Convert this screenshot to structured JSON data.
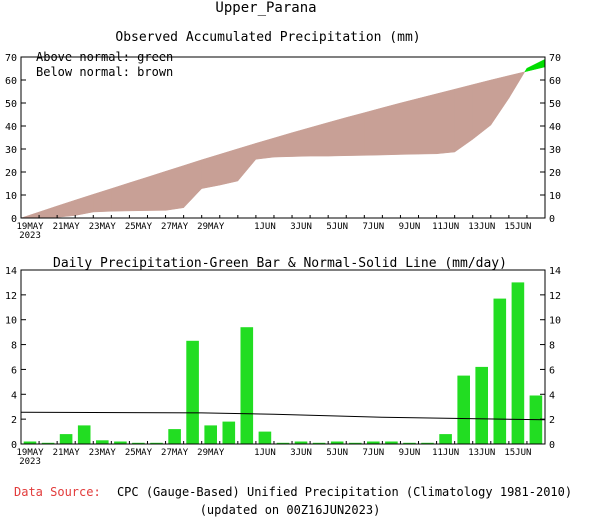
{
  "title": "Upper_Parana",
  "colors": {
    "above": "#00dd00",
    "below": "#c8a096",
    "bar": "#22dd22",
    "line": "#000000",
    "source_label": "#e23b3b"
  },
  "chart_data": [
    {
      "type": "area",
      "title": "Observed Accumulated Precipitation (mm)",
      "legend": [
        "Above normal: green",
        "Below normal: brown"
      ],
      "legend_position": "top-left",
      "x_days": [
        0,
        1,
        2,
        3,
        4,
        5,
        6,
        7,
        8,
        9,
        10,
        11,
        12,
        13,
        14,
        15,
        16,
        17,
        18,
        19,
        20,
        21,
        22,
        23,
        24,
        25,
        26,
        27,
        28,
        29
      ],
      "x_ticks": [
        {
          "day": 1,
          "label": "19MAY",
          "sub": "2023"
        },
        {
          "day": 3,
          "label": "21MAY"
        },
        {
          "day": 5,
          "label": "23MAY"
        },
        {
          "day": 7,
          "label": "25MAY"
        },
        {
          "day": 9,
          "label": "27MAY"
        },
        {
          "day": 11,
          "label": "29MAY"
        },
        {
          "day": 14,
          "label": "1JUN"
        },
        {
          "day": 16,
          "label": "3JUN"
        },
        {
          "day": 18,
          "label": "5JUN"
        },
        {
          "day": 20,
          "label": "7JUN"
        },
        {
          "day": 22,
          "label": "9JUN"
        },
        {
          "day": 24,
          "label": "11JUN"
        },
        {
          "day": 26,
          "label": "13JUN"
        },
        {
          "day": 28,
          "label": "15JUN"
        }
      ],
      "observed_accumulated": [
        0,
        0.2,
        0.3,
        1.1,
        2.6,
        2.9,
        3.1,
        3.2,
        3.3,
        4.5,
        12.8,
        14.3,
        16.1,
        25.5,
        26.5,
        26.7,
        26.9,
        26.9,
        27.1,
        27.2,
        27.4,
        27.6,
        27.8,
        27.9,
        28.7,
        34.2,
        40.4,
        52.1,
        65.1,
        69.0
      ],
      "normal_accumulated": [
        0,
        2.6,
        5.2,
        7.8,
        10.3,
        12.8,
        15.3,
        17.8,
        20.3,
        22.8,
        25.3,
        27.7,
        30.1,
        32.5,
        34.8,
        37.1,
        39.3,
        41.5,
        43.7,
        45.8,
        47.9,
        50.0,
        52.0,
        54.0,
        56.0,
        58.0,
        60.0,
        61.9,
        63.8,
        65.7
      ],
      "ylim": [
        0,
        70
      ],
      "yticks": [
        0,
        10,
        20,
        30,
        40,
        50,
        60,
        70
      ]
    },
    {
      "type": "bar",
      "title": "Daily Precipitation-Green Bar & Normal-Solid Line (mm/day)",
      "bar_days": [
        1,
        2,
        3,
        4,
        5,
        6,
        7,
        8,
        9,
        10,
        11,
        12,
        13,
        14,
        15,
        16,
        17,
        18,
        19,
        20,
        21,
        22,
        23,
        24,
        25,
        26,
        27,
        28,
        29
      ],
      "daily": [
        0.2,
        0.1,
        0.8,
        1.5,
        0.3,
        0.2,
        0.1,
        0.1,
        1.2,
        8.3,
        1.5,
        1.8,
        9.4,
        1.0,
        0.1,
        0.2,
        0.1,
        0.2,
        0.1,
        0.2,
        0.2,
        0.1,
        0.1,
        0.8,
        5.5,
        6.2,
        11.7,
        13.0,
        3.9
      ],
      "normal_line": [
        [
          0,
          2.55
        ],
        [
          10,
          2.5
        ],
        [
          14,
          2.4
        ],
        [
          20,
          2.15
        ],
        [
          29,
          1.95
        ]
      ],
      "ylim": [
        0,
        14
      ],
      "yticks": [
        0,
        2,
        4,
        6,
        8,
        10,
        12,
        14
      ]
    }
  ],
  "source": {
    "label": "Data Source:",
    "text": "CPC (Gauge-Based) Unified Precipitation (Climatology 1981-2010)",
    "updated": "(updated on 00Z16JUN2023)"
  }
}
